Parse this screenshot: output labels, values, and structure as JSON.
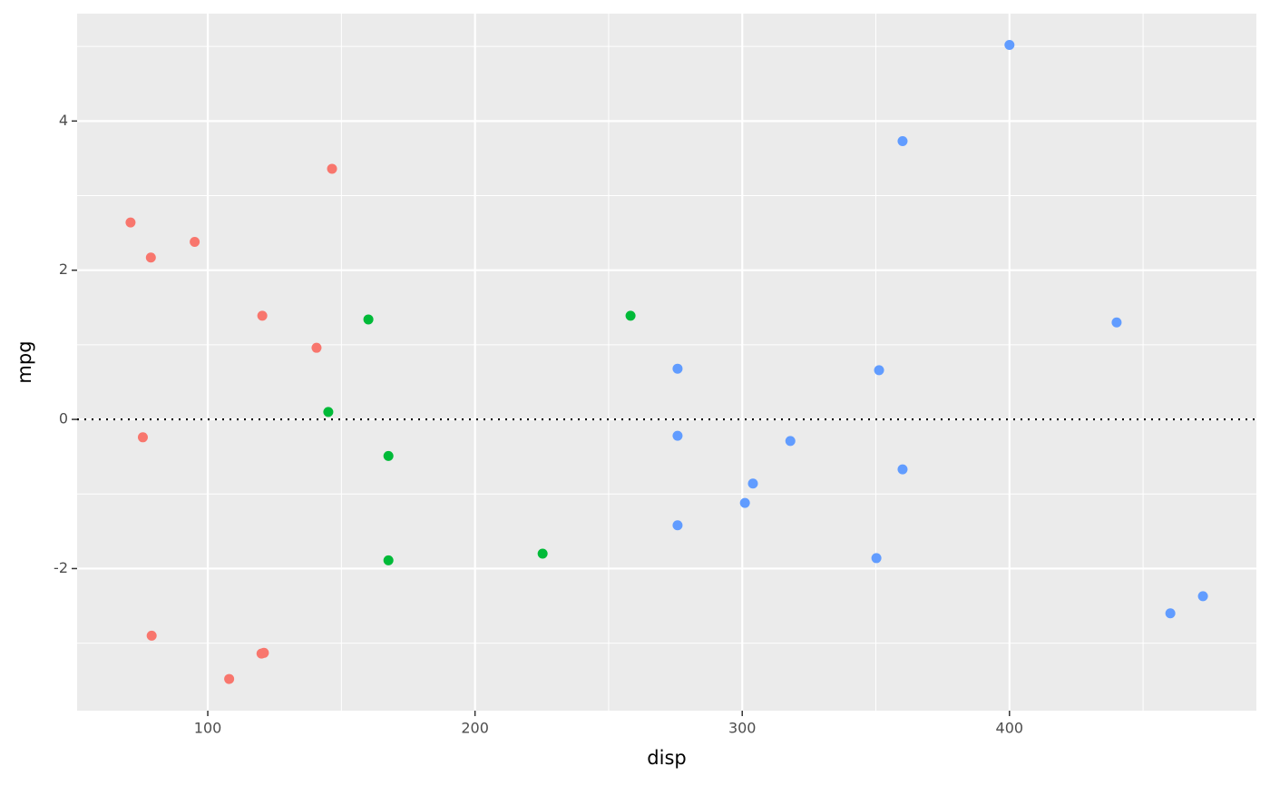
{
  "chart_data": {
    "type": "scatter",
    "xlabel": "disp",
    "ylabel": "mpg",
    "xlim": [
      51.1,
      492.4
    ],
    "ylim": [
      -3.905,
      5.44
    ],
    "xticks": [
      100,
      200,
      300,
      400
    ],
    "yticks": [
      -2,
      0,
      2,
      4
    ],
    "minor_xgrid": [
      150,
      250,
      350,
      450
    ],
    "minor_ygrid": [
      -3,
      -1,
      1,
      3,
      5
    ],
    "grid": true,
    "hline": 0,
    "series": [
      {
        "color": "#f8766d",
        "x": [
          71.1,
          78.7,
          95.1,
          120.4,
          140.7,
          146.5,
          75.7,
          79,
          108,
          120.1,
          121
        ],
        "values": [
          2.64,
          2.17,
          2.38,
          1.39,
          0.96,
          3.36,
          -0.24,
          -2.9,
          -3.48,
          -3.14,
          -3.13
        ]
      },
      {
        "color": "#00ba38",
        "x": [
          160.1,
          258.2,
          145.1,
          167.6,
          167.6,
          225.3
        ],
        "values": [
          1.34,
          1.39,
          0.1,
          -0.49,
          -1.89,
          -1.8
        ]
      },
      {
        "color": "#619cff",
        "x": [
          400,
          360,
          440.1,
          275.8,
          351.2,
          275.8,
          318,
          360,
          304,
          301,
          275.8,
          350.2,
          460.2,
          472.4
        ],
        "values": [
          5.02,
          3.73,
          1.3,
          0.68,
          0.66,
          -0.22,
          -0.29,
          -0.67,
          -0.86,
          -1.12,
          -1.42,
          -1.86,
          -2.6,
          -2.37
        ]
      }
    ]
  }
}
